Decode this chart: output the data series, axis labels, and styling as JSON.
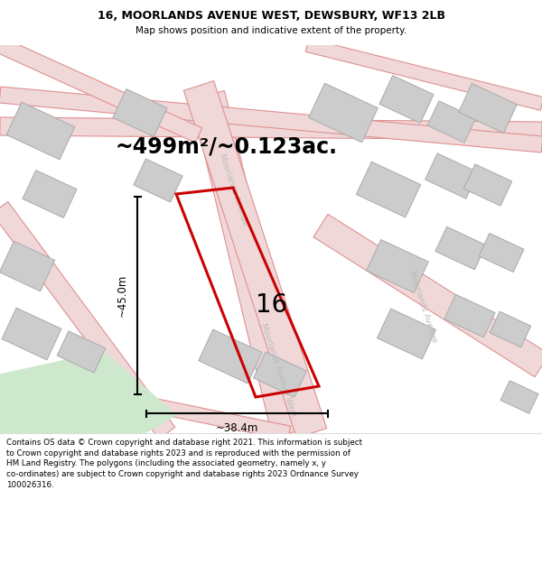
{
  "title_line1": "16, MOORLANDS AVENUE WEST, DEWSBURY, WF13 2LB",
  "title_line2": "Map shows position and indicative extent of the property.",
  "area_text": "~499m²/~0.123ac.",
  "label_16": "16",
  "dim_vertical": "~45.0m",
  "dim_horizontal": "~38.4m",
  "footer_text": "Contains OS data © Crown copyright and database right 2021. This information is subject to Crown copyright and database rights 2023 and is reproduced with the permission of HM Land Registry. The polygons (including the associated geometry, namely x, y co-ordinates) are subject to Crown copyright and database rights 2023 Ordnance Survey 100026316.",
  "map_bg": "#f7f0f0",
  "red_plot": "#cc0000",
  "gray_block": "#cccccc",
  "gray_block_edge": "#aaaaaa",
  "green_fill": "#cde8cd",
  "road_fill": "#f0d8d8",
  "road_edge": "#e09090",
  "header_bg": "#ffffff",
  "footer_bg": "#ffffff",
  "text_gray": "#aaaaaa",
  "road_label_color": "#bbbbbb"
}
